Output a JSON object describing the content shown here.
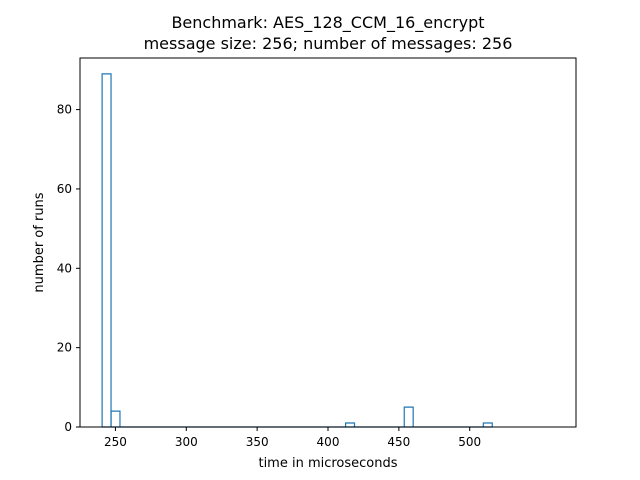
{
  "chart_data": {
    "type": "histogram",
    "title": "Benchmark: AES_128_CCM_16_encrypt",
    "subtitle": "message size: 256; number of messages: 256",
    "xlabel": "time in microseconds",
    "ylabel": "number of runs",
    "xlim": [
      225,
      575
    ],
    "ylim": [
      0,
      93
    ],
    "x_ticks": [
      250,
      300,
      350,
      400,
      450,
      500
    ],
    "y_ticks": [
      0,
      20,
      40,
      60,
      80
    ],
    "bin_edges": [
      240.6,
      246.9,
      253.2
    ],
    "bars": [
      {
        "x0": 240.6,
        "x1": 246.9,
        "count": 89
      },
      {
        "x0": 246.9,
        "x1": 253.2,
        "count": 4
      },
      {
        "x0": 412.4,
        "x1": 418.7,
        "count": 1
      },
      {
        "x0": 453.8,
        "x1": 460.1,
        "count": 5
      },
      {
        "x0": 509.6,
        "x1": 515.9,
        "count": 1
      }
    ],
    "grid": false,
    "histtype": "step",
    "colors": {
      "series": "#1f77b4",
      "axes": "#000000"
    }
  }
}
